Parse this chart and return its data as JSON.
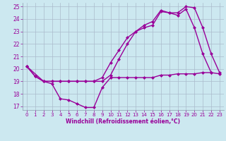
{
  "xlabel": "Windchill (Refroidissement éolien,°C)",
  "background_color": "#cce8f0",
  "grid_color": "#aabbcc",
  "line_color": "#990099",
  "xlim": [
    -0.5,
    23.5
  ],
  "ylim": [
    16.7,
    25.3
  ],
  "yticks": [
    17,
    18,
    19,
    20,
    21,
    22,
    23,
    24,
    25
  ],
  "xticks": [
    0,
    1,
    2,
    3,
    4,
    5,
    6,
    7,
    8,
    9,
    10,
    11,
    12,
    13,
    14,
    15,
    16,
    17,
    18,
    19,
    20,
    21,
    22,
    23
  ],
  "line1_x": [
    0,
    1,
    2,
    3,
    4,
    5,
    6,
    7,
    8,
    9,
    10,
    11,
    12,
    13,
    14,
    15,
    16,
    17,
    18,
    19,
    20,
    21,
    22,
    23
  ],
  "line1_y": [
    20.2,
    19.4,
    19.0,
    18.8,
    17.6,
    17.5,
    17.2,
    16.9,
    16.9,
    18.5,
    19.3,
    19.3,
    19.3,
    19.3,
    19.3,
    19.3,
    19.5,
    19.5,
    19.6,
    19.6,
    19.6,
    19.7,
    19.7,
    19.6
  ],
  "line2_x": [
    0,
    1,
    2,
    3,
    4,
    5,
    6,
    7,
    8,
    9,
    10,
    11,
    12,
    13,
    14,
    15,
    16,
    17,
    18,
    19,
    20,
    21,
    22
  ],
  "line2_y": [
    20.2,
    19.4,
    19.0,
    19.0,
    19.0,
    19.0,
    19.0,
    19.0,
    19.0,
    19.3,
    20.5,
    21.5,
    22.5,
    23.0,
    23.3,
    23.5,
    24.6,
    24.5,
    24.3,
    24.8,
    23.3,
    21.2,
    19.7
  ],
  "line3_x": [
    0,
    2,
    3,
    4,
    5,
    6,
    7,
    8,
    9,
    10,
    11,
    12,
    13,
    14,
    15,
    16,
    17,
    18,
    19,
    20,
    21,
    22,
    23
  ],
  "line3_y": [
    20.2,
    19.0,
    19.0,
    19.0,
    19.0,
    19.0,
    19.0,
    19.0,
    19.0,
    19.5,
    20.8,
    22.0,
    23.0,
    23.5,
    23.8,
    24.7,
    24.5,
    24.5,
    25.0,
    24.9,
    23.3,
    21.2,
    19.7
  ],
  "marker": "D",
  "marker_size": 2.5,
  "linewidth": 1.0
}
